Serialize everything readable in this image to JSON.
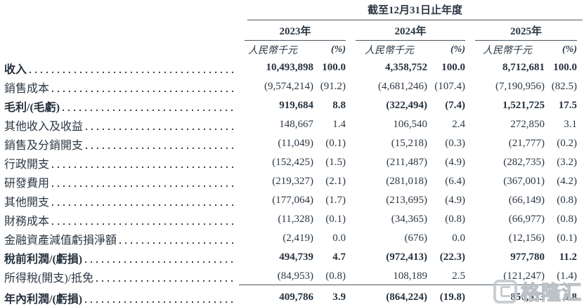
{
  "header": {
    "period_title": "截至12月31日止年度",
    "years": [
      "2023年",
      "2024年",
      "2025年"
    ],
    "unit_label": "人民幣千元",
    "pct_label": "(%)"
  },
  "rows": [
    {
      "label": "收入",
      "bold": true,
      "values": [
        "10,493,898",
        "100.0",
        "4,358,752",
        "100.0",
        "8,712,681",
        "100.0"
      ]
    },
    {
      "label": "銷售成本",
      "bold": false,
      "values": [
        "(9,574,214)",
        "(91.2)",
        "(4,681,246)",
        "(107.4)",
        "(7,190,956)",
        "(82.5)"
      ]
    },
    {
      "label": "毛利/(毛虧)",
      "bold": true,
      "values": [
        "919,684",
        "8.8",
        "(322,494)",
        "(7.4)",
        "1,521,725",
        "17.5"
      ]
    },
    {
      "label": "其他收入及收益",
      "bold": false,
      "values": [
        "148,667",
        "1.4",
        "106,540",
        "2.4",
        "272,850",
        "3.1"
      ]
    },
    {
      "label": "銷售及分銷開支",
      "bold": false,
      "values": [
        "(11,049)",
        "(0.1)",
        "(15,218)",
        "(0.3)",
        "(21,777)",
        "(0.2)"
      ]
    },
    {
      "label": "行政開支",
      "bold": false,
      "values": [
        "(152,425)",
        "(1.5)",
        "(211,487)",
        "(4.9)",
        "(282,735)",
        "(3.2)"
      ]
    },
    {
      "label": "研發費用",
      "bold": false,
      "values": [
        "(219,327)",
        "(2.1)",
        "(281,018)",
        "(6.4)",
        "(367,001)",
        "(4.2)"
      ]
    },
    {
      "label": "其他開支",
      "bold": false,
      "values": [
        "(177,064)",
        "(1.7)",
        "(213,695)",
        "(4.9)",
        "(66,149)",
        "(0.8)"
      ]
    },
    {
      "label": "財務成本",
      "bold": false,
      "values": [
        "(11,328)",
        "(0.1)",
        "(34,365)",
        "(0.8)",
        "(66,977)",
        "(0.8)"
      ]
    },
    {
      "label": "金融資產減值虧損淨額",
      "bold": false,
      "values": [
        "(2,419)",
        "0.0",
        "(676)",
        "0.0",
        "(12,156)",
        "(0.1)"
      ]
    },
    {
      "label": "稅前利潤/(虧損)",
      "bold": true,
      "values": [
        "494,739",
        "4.7",
        "(972,413)",
        "(22.3)",
        "977,780",
        "11.2"
      ]
    },
    {
      "label": "所得稅(開支)/抵免",
      "bold": false,
      "line_below": true,
      "values": [
        "(84,953)",
        "(0.8)",
        "108,189",
        "2.5",
        "(121,247)",
        "(1.4)"
      ]
    },
    {
      "label": "年內利潤/(虧損)",
      "bold": true,
      "total": true,
      "values": [
        "409,786",
        "3.9",
        "(864,224)",
        "(19.8)",
        "856,533",
        "9.8"
      ]
    }
  ],
  "watermark": {
    "brand": "格隆汇"
  },
  "colors": {
    "text": "#2b3743",
    "line": "#4d5863",
    "watermark": "#c4cad0"
  }
}
